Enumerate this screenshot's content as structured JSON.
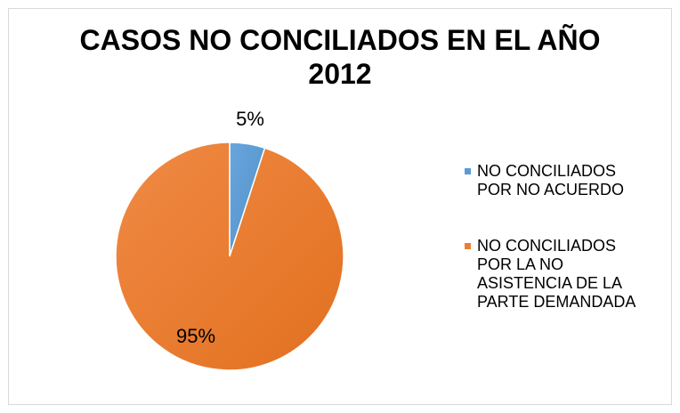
{
  "chart_data": {
    "type": "pie",
    "title_lines": [
      "CASOS NO CONCILIADOS EN EL AÑO",
      "2012"
    ],
    "categories": [
      "NO CONCILIADOS POR NO ACUERDO",
      "NO CONCILIADOS POR LA NO ASISTENCIA DE LA PARTE DEMANDADA"
    ],
    "values": [
      5,
      95
    ],
    "data_labels": [
      "5%",
      "95%"
    ],
    "colors": [
      "#5b9bd5",
      "#ed7d31"
    ],
    "legend_position": "right",
    "legend_lines": [
      [
        "NO CONCILIADOS",
        "POR NO ACUERDO"
      ],
      [
        "NO CONCILIADOS",
        "POR LA NO",
        "ASISTENCIA DE LA",
        "PARTE DEMANDADA"
      ]
    ]
  }
}
